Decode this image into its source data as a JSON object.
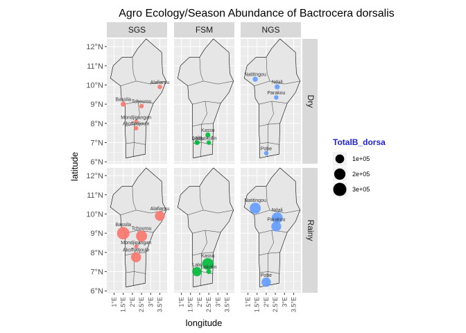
{
  "chart_data": {
    "type": "scatter",
    "title": "Agro Ecology/Season Abundance of Bactrocera dorsalis",
    "xlabel": "longitude",
    "ylabel": "latitude",
    "xlim": [
      0.6,
      3.9
    ],
    "ylim": [
      5.9,
      12.4
    ],
    "x_ticks": [
      "1°E",
      "1.5°E",
      "2°E",
      "2.5°E",
      "3°E",
      "3.5°E"
    ],
    "x_tick_values": [
      1,
      1.5,
      2,
      2.5,
      3,
      3.5
    ],
    "y_ticks": [
      "6°N",
      "7°N",
      "8°N",
      "9°N",
      "10°N",
      "11°N",
      "12°N"
    ],
    "y_tick_values": [
      6,
      7,
      8,
      9,
      10,
      11,
      12
    ],
    "facet_columns": [
      "SGS",
      "FSM",
      "NGS"
    ],
    "facet_rows": [
      "Dry",
      "Rainy"
    ],
    "column_colors": {
      "SGS": "#F8766D",
      "FSM": "#00BA38",
      "NGS": "#619CFF"
    },
    "legend": {
      "title": "TotalB_dorsa",
      "entries": [
        {
          "label": "1e+05",
          "value": 100000
        },
        {
          "label": "2e+05",
          "value": 200000
        },
        {
          "label": "3e+05",
          "value": 300000
        }
      ]
    },
    "series": [
      {
        "column": "SGS",
        "row": "Dry",
        "points": [
          {
            "label": "Alafiarou",
            "lon": 3.5,
            "lat": 9.9,
            "value": 8000
          },
          {
            "label": "Bassila",
            "lon": 1.5,
            "lat": 9.0,
            "value": 15000
          },
          {
            "label": "Tchourou",
            "lon": 2.5,
            "lat": 8.9,
            "value": 8000
          },
          {
            "label": "Mondjigangan",
            "lon": 2.2,
            "lat": 8.1,
            "value": 3000
          },
          {
            "label": "Akoffodjoule",
            "lon": 2.2,
            "lat": 7.75,
            "value": 8000
          }
        ]
      },
      {
        "column": "FSM",
        "row": "Dry",
        "points": [
          {
            "label": "Kassu",
            "lon": 2.45,
            "lat": 7.4,
            "value": 15000
          },
          {
            "label": "Lalo",
            "lon": 1.85,
            "lat": 7.0,
            "value": 12000
          },
          {
            "label": "Djidja",
            "lon": 1.9,
            "lat": 7.0,
            "value": 3000
          },
          {
            "label": "Lokofin",
            "lon": 2.5,
            "lat": 7.0,
            "value": 8000
          }
        ]
      },
      {
        "column": "NGS",
        "row": "Dry",
        "points": [
          {
            "label": "Natitingou",
            "lon": 1.4,
            "lat": 10.3,
            "value": 15000
          },
          {
            "label": "Ndali",
            "lon": 2.6,
            "lat": 9.9,
            "value": 15000
          },
          {
            "label": "Parakou",
            "lon": 2.55,
            "lat": 9.35,
            "value": 8000
          },
          {
            "label": "Pobe",
            "lon": 2.0,
            "lat": 6.45,
            "value": 8000
          }
        ]
      },
      {
        "column": "SGS",
        "row": "Rainy",
        "points": [
          {
            "label": "Alafiarou",
            "lon": 3.5,
            "lat": 9.9,
            "value": 140000
          },
          {
            "label": "Bassila",
            "lon": 1.5,
            "lat": 9.0,
            "value": 260000
          },
          {
            "label": "Tchourou",
            "lon": 2.5,
            "lat": 8.85,
            "value": 190000
          },
          {
            "label": "Mondjigangan",
            "lon": 2.2,
            "lat": 8.3,
            "value": 3000
          },
          {
            "label": "Akoffodjoule",
            "lon": 2.2,
            "lat": 7.75,
            "value": 150000
          }
        ]
      },
      {
        "column": "FSM",
        "row": "Rainy",
        "points": [
          {
            "label": "Kassu",
            "lon": 2.45,
            "lat": 7.4,
            "value": 220000
          },
          {
            "label": "Lalo",
            "lon": 1.85,
            "lat": 7.0,
            "value": 120000
          },
          {
            "label": "Lokofin",
            "lon": 2.5,
            "lat": 7.0,
            "value": 12000
          }
        ]
      },
      {
        "column": "NGS",
        "row": "Rainy",
        "points": [
          {
            "label": "Natitingou",
            "lon": 1.4,
            "lat": 10.3,
            "value": 190000
          },
          {
            "label": "Ndali",
            "lon": 2.6,
            "lat": 9.8,
            "value": 190000
          },
          {
            "label": "Parakou",
            "lon": 2.55,
            "lat": 9.35,
            "value": 140000
          },
          {
            "label": "Pobe",
            "lon": 2.0,
            "lat": 6.45,
            "value": 120000
          }
        ]
      }
    ]
  }
}
